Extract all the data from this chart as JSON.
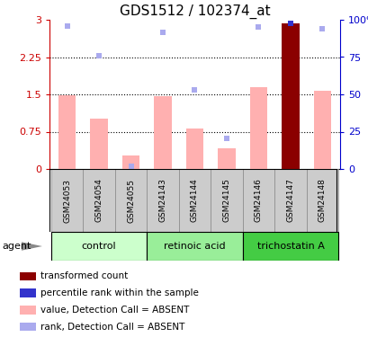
{
  "title": "GDS1512 / 102374_at",
  "samples": [
    "GSM24053",
    "GSM24054",
    "GSM24055",
    "GSM24143",
    "GSM24144",
    "GSM24145",
    "GSM24146",
    "GSM24147",
    "GSM24148"
  ],
  "bar_values": [
    1.48,
    1.02,
    0.27,
    1.46,
    0.82,
    0.42,
    1.65,
    2.92,
    1.57
  ],
  "bar_colors": [
    "#ffb0b0",
    "#ffb0b0",
    "#ffb0b0",
    "#ffb0b0",
    "#ffb0b0",
    "#ffb0b0",
    "#ffb0b0",
    "#8b0000",
    "#ffb0b0"
  ],
  "rank_values": [
    96.0,
    76.0,
    1.7,
    91.7,
    53.3,
    20.7,
    95.0,
    97.7,
    94.0
  ],
  "rank_colors": [
    "#aaaaee",
    "#aaaaee",
    "#aaaaee",
    "#aaaaee",
    "#aaaaee",
    "#aaaaee",
    "#aaaaee",
    "#3333cc",
    "#aaaaee"
  ],
  "groups": [
    {
      "label": "control",
      "start": 0,
      "end": 3,
      "color": "#ccffcc"
    },
    {
      "label": "retinoic acid",
      "start": 3,
      "end": 6,
      "color": "#99ee99"
    },
    {
      "label": "trichostatin A",
      "start": 6,
      "end": 9,
      "color": "#44cc44"
    }
  ],
  "ylim_left": [
    0,
    3
  ],
  "ylim_right": [
    0,
    100
  ],
  "yticks_left": [
    0,
    0.75,
    1.5,
    2.25,
    3
  ],
  "yticks_left_labels": [
    "0",
    "0.75",
    "1.5",
    "2.25",
    "3"
  ],
  "yticks_right": [
    0,
    25,
    50,
    75,
    100
  ],
  "yticks_right_labels": [
    "0",
    "25",
    "50",
    "75",
    "100%"
  ],
  "hlines": [
    0.75,
    1.5,
    2.25
  ],
  "left_axis_color": "#cc0000",
  "right_axis_color": "#0000cc",
  "agent_label": "agent",
  "legend_items": [
    {
      "color": "#8b0000",
      "label": "transformed count"
    },
    {
      "color": "#3333cc",
      "label": "percentile rank within the sample"
    },
    {
      "color": "#ffb0b0",
      "label": "value, Detection Call = ABSENT"
    },
    {
      "color": "#aaaaee",
      "label": "rank, Detection Call = ABSENT"
    }
  ],
  "sample_box_color": "#cccccc",
  "figsize": [
    4.1,
    3.75
  ],
  "dpi": 100
}
